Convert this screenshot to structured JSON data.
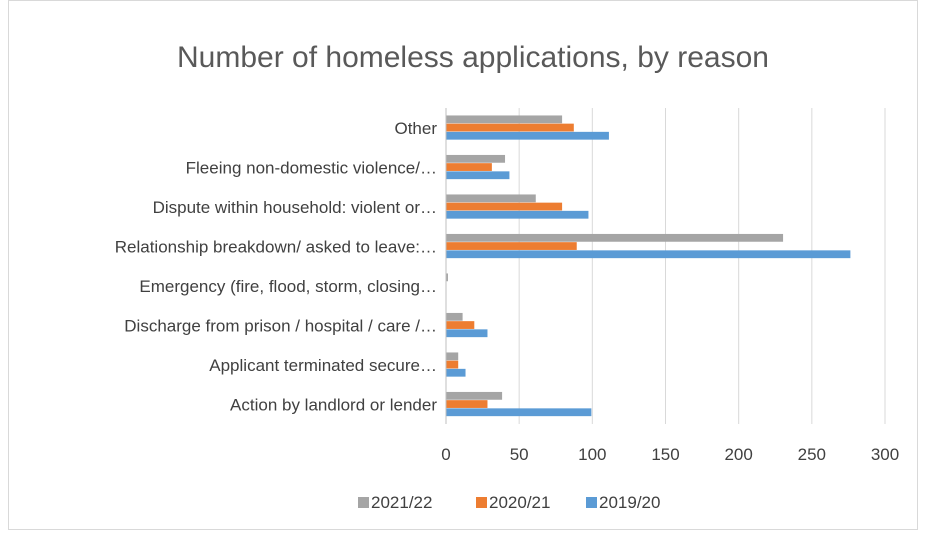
{
  "chart_data": {
    "type": "bar",
    "orientation": "horizontal",
    "title": "Number of homeless applications, by reason",
    "xlabel": "",
    "ylabel": "",
    "xlim": [
      0,
      300
    ],
    "x_ticks": [
      "0",
      "50",
      "100",
      "150",
      "200",
      "250",
      "300"
    ],
    "grid": true,
    "legend_position": "bottom",
    "categories": [
      "Other",
      "Fleeing non-domestic violence/…",
      "Dispute within household: violent or…",
      "Relationship breakdown/ asked to leave:…",
      "Emergency (fire, flood, storm, closing…",
      "Discharge from prison / hospital / care /…",
      "Applicant terminated secure…",
      "Action by landlord or lender"
    ],
    "series": [
      {
        "name": "2021/22",
        "color": "#a5a5a5",
        "values": [
          79,
          40,
          61,
          230,
          1,
          11,
          8,
          38
        ]
      },
      {
        "name": "2020/21",
        "color": "#ed7d31",
        "values": [
          87,
          31,
          79,
          89,
          0,
          19,
          8,
          28
        ]
      },
      {
        "name": "2019/20",
        "color": "#5b9bd5",
        "values": [
          111,
          43,
          97,
          276,
          0,
          28,
          13,
          99
        ]
      }
    ]
  }
}
